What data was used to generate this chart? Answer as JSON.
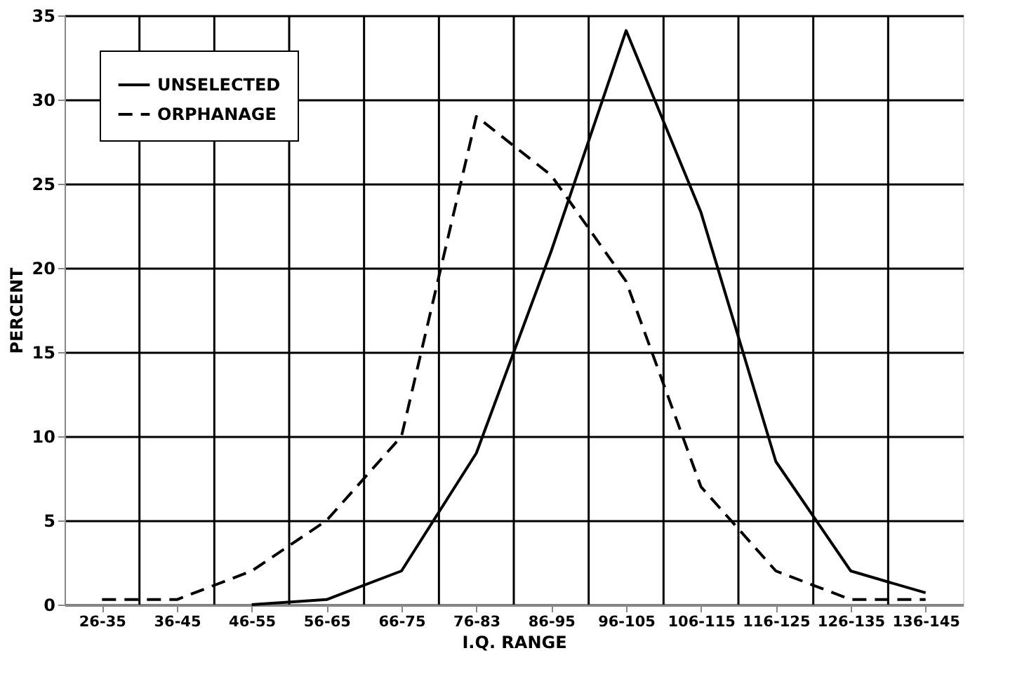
{
  "chart_data": {
    "type": "line",
    "xlabel": "I.Q. RANGE",
    "ylabel": "PERCENT",
    "categories": [
      "26-35",
      "36-45",
      "46-55",
      "56-65",
      "66-75",
      "76-83",
      "86-95",
      "96-105",
      "106-115",
      "116-125",
      "126-135",
      "136-145"
    ],
    "series": [
      {
        "name": "UNSELECTED",
        "color": "#000000",
        "line_style": "solid",
        "values": [
          null,
          null,
          0,
          0.3,
          2,
          9,
          21,
          34.1,
          23.3,
          8.5,
          2,
          0.7
        ]
      },
      {
        "name": "ORPHANAGE",
        "color": "#000000",
        "line_style": "dashed",
        "values": [
          0.3,
          0.3,
          2,
          5,
          10,
          29,
          25.5,
          19.2,
          7,
          2,
          0.3,
          0.3
        ]
      }
    ],
    "ylim": [
      0,
      35
    ],
    "yticks": [
      0,
      5,
      10,
      15,
      20,
      25,
      30,
      35
    ],
    "grid": true,
    "legend": "top left",
    "marker": "none"
  }
}
